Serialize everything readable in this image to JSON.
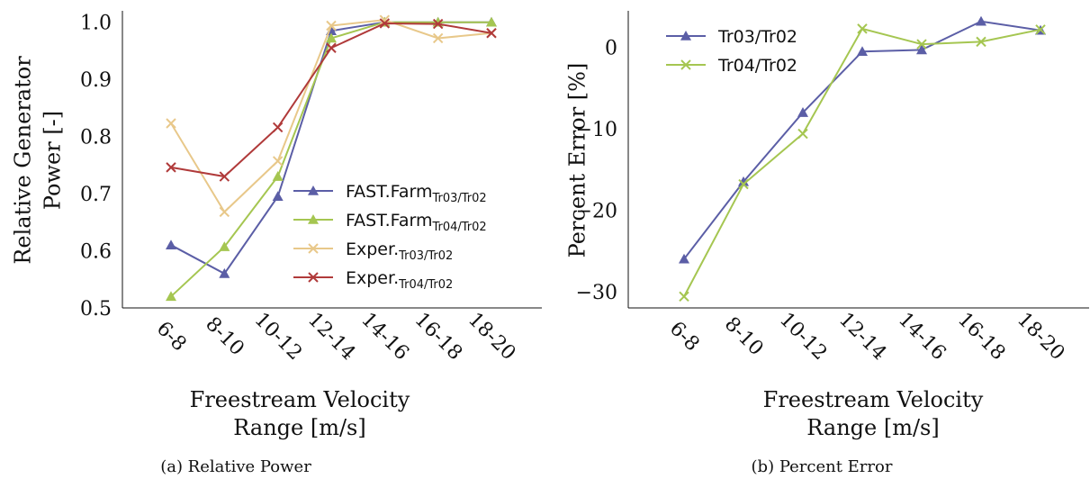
{
  "chart_data": [
    {
      "type": "line",
      "caption": "(a) Relative Power",
      "xlabel": [
        "Freestream Velocity",
        "Range [m/s]"
      ],
      "ylabel": [
        "Relative Generator",
        "Power [-]"
      ],
      "categories": [
        "6-8",
        "8-10",
        "10-12",
        "12-14",
        "14-16",
        "16-18",
        "18-20"
      ],
      "ylim": [
        0.5,
        1.02
      ],
      "yticks": [
        0.5,
        0.6,
        0.7,
        0.8,
        0.9,
        1.0
      ],
      "yticklabels": [
        "0.5",
        "0.6",
        "0.7",
        "0.8",
        "0.9",
        "1.0"
      ],
      "legend_position": "right",
      "series": [
        {
          "name": "FAST.Farm",
          "sub": "Tr03/Tr02",
          "color": "#5b5ea6",
          "marker": "triangle",
          "values": [
            0.61,
            0.56,
            0.695,
            0.985,
            1.0,
            1.0,
            1.0
          ]
        },
        {
          "name": "FAST.Farm",
          "sub": "Tr04/Tr02",
          "color": "#a5c651",
          "marker": "triangle",
          "values": [
            0.52,
            0.607,
            0.73,
            0.972,
            1.0,
            1.0,
            1.0
          ]
        },
        {
          "name": "Exper.",
          "sub": "Tr03/Tr02",
          "color": "#e8c88a",
          "marker": "x",
          "values": [
            0.823,
            0.668,
            0.757,
            0.994,
            1.004,
            0.972,
            0.981
          ]
        },
        {
          "name": "Exper.",
          "sub": "Tr04/Tr02",
          "color": "#b03a3a",
          "marker": "x",
          "values": [
            0.746,
            0.73,
            0.816,
            0.955,
            0.998,
            0.997,
            0.981
          ]
        }
      ]
    },
    {
      "type": "line",
      "caption": "(b) Percent Error",
      "xlabel": [
        "Freestream Velocity",
        "Range [m/s]"
      ],
      "ylabel": [
        "Percent Error [%]"
      ],
      "categories": [
        "6-8",
        "8-10",
        "10-12",
        "12-14",
        "14-16",
        "16-18",
        "18-20"
      ],
      "ylim": [
        -32,
        4.5
      ],
      "yticks": [
        -30,
        -20,
        -10,
        0
      ],
      "yticklabels": [
        "−30",
        "−20",
        "−10",
        "0"
      ],
      "legend_position": "top-left",
      "series": [
        {
          "name": "Tr03/Tr02",
          "color": "#5b5ea6",
          "marker": "triangle",
          "values": [
            -26,
            -16.5,
            -8,
            -0.5,
            -0.3,
            3.2,
            2.1
          ]
        },
        {
          "name": "Tr04/Tr02",
          "color": "#a5c651",
          "marker": "x",
          "values": [
            -30.6,
            -16.8,
            -10.6,
            2.3,
            0.4,
            0.7,
            2.2
          ]
        }
      ]
    }
  ]
}
